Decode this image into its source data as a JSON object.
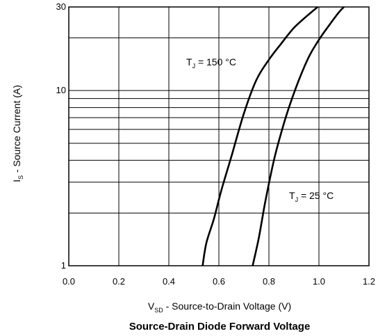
{
  "chart_data": {
    "type": "line",
    "title": "Source-Drain Diode Forward Voltage",
    "xlabel": {
      "main": "V",
      "sub": "SD",
      "rest": " - Source-to-Drain Voltage (V)"
    },
    "ylabel": {
      "main": "I",
      "sub": "S",
      "rest": " - Source Current (A)"
    },
    "xlim": [
      0,
      1.2
    ],
    "ylim": [
      1,
      30
    ],
    "yscale": "log",
    "grid": true,
    "x_ticks": [
      0.0,
      0.2,
      0.4,
      0.6,
      0.8,
      1.0,
      1.2
    ],
    "x_tick_labels": [
      "0.0",
      "0.2",
      "0.4",
      "0.6",
      "0.8",
      "1.0",
      "1.2"
    ],
    "y_tick_labels": [
      {
        "value": 1,
        "label": "1"
      },
      {
        "value": 10,
        "label": "10"
      },
      {
        "value": 30,
        "label": "30"
      }
    ],
    "y_grid_values": [
      2,
      3,
      4,
      5,
      6,
      7,
      8,
      9,
      10,
      20
    ],
    "series": [
      {
        "annotation": {
          "main": "T",
          "sub": "J",
          "rest": " = 150 °C"
        },
        "points": [
          [
            0.535,
            1
          ],
          [
            0.55,
            1.35
          ],
          [
            0.58,
            1.85
          ],
          [
            0.61,
            2.7
          ],
          [
            0.65,
            4.2
          ],
          [
            0.7,
            7.4
          ],
          [
            0.75,
            11.5
          ],
          [
            0.8,
            15.0
          ],
          [
            0.85,
            18.6
          ],
          [
            0.9,
            22.8
          ],
          [
            0.95,
            26.5
          ],
          [
            0.995,
            30
          ]
        ]
      },
      {
        "annotation": {
          "main": "T",
          "sub": "J",
          "rest": " = 25 °C"
        },
        "points": [
          [
            0.735,
            1
          ],
          [
            0.76,
            1.45
          ],
          [
            0.785,
            2.3
          ],
          [
            0.82,
            4.0
          ],
          [
            0.85,
            5.8
          ],
          [
            0.88,
            8.0
          ],
          [
            0.92,
            11.5
          ],
          [
            0.96,
            15.6
          ],
          [
            1.0,
            19.5
          ],
          [
            1.04,
            23.5
          ],
          [
            1.08,
            28.0
          ],
          [
            1.1,
            30
          ]
        ]
      }
    ]
  }
}
